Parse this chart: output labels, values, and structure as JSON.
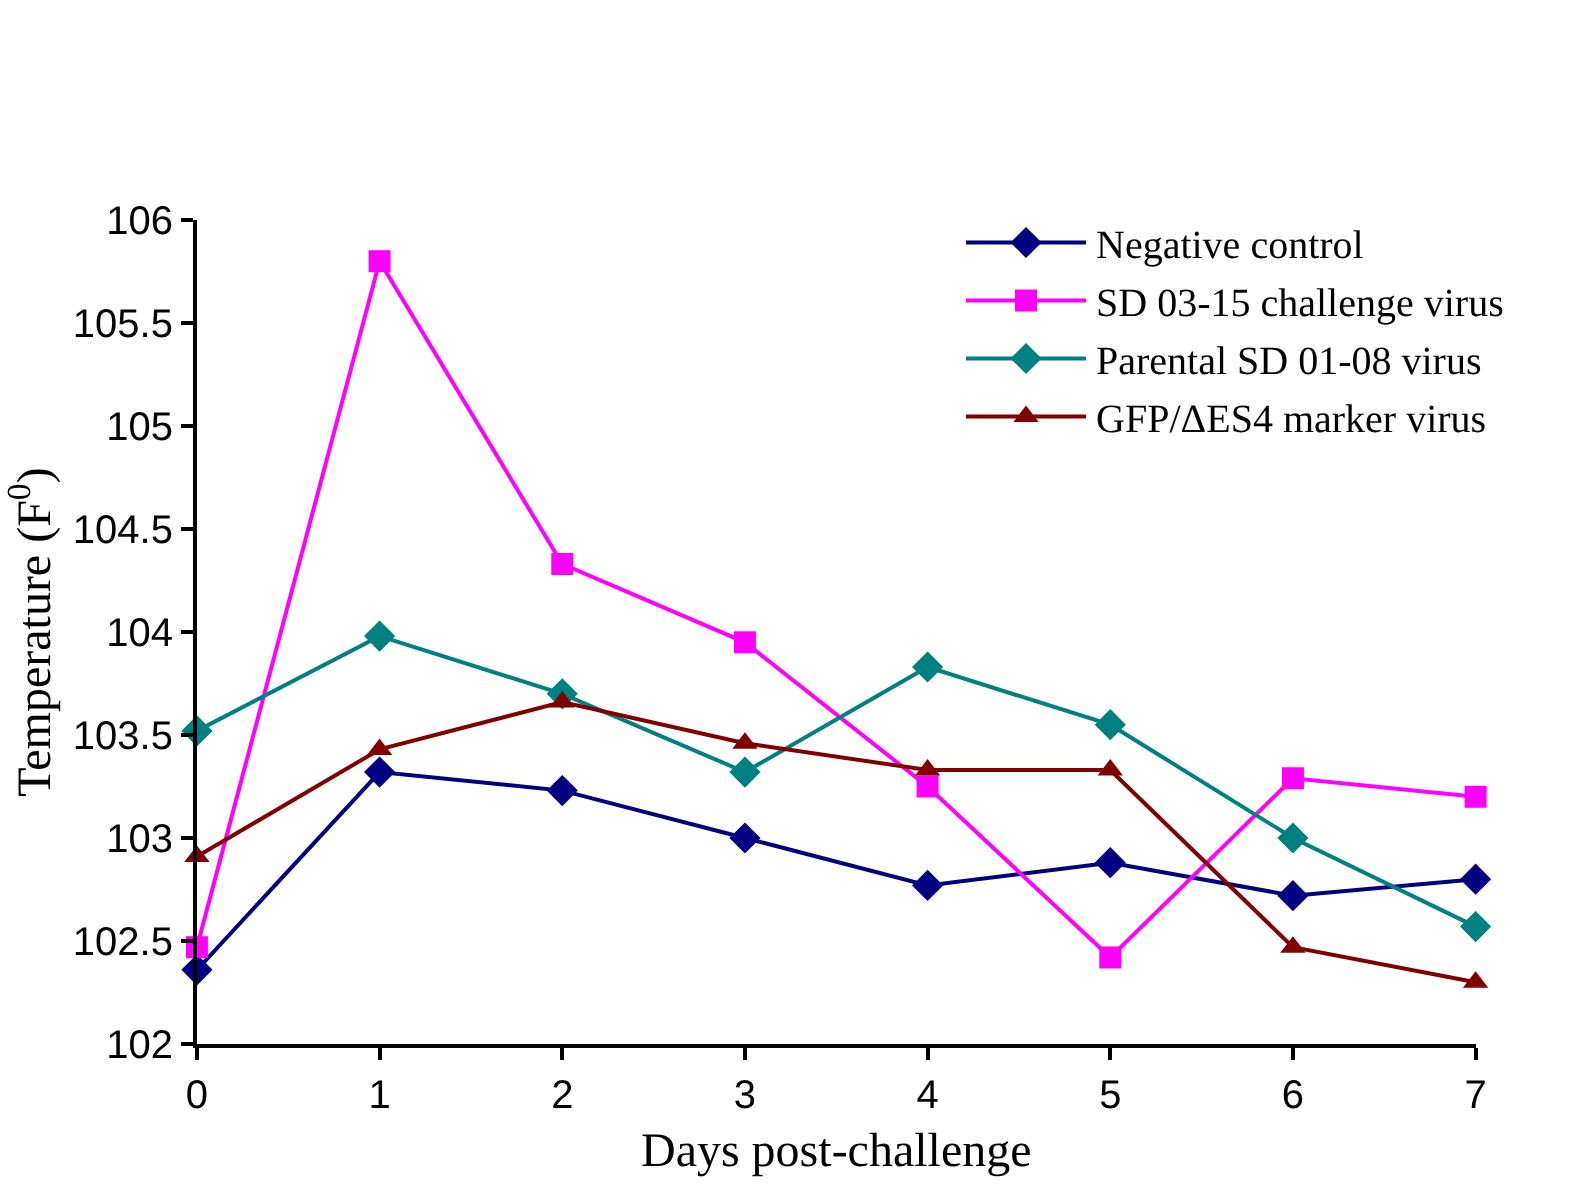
{
  "chart_data": {
    "type": "line",
    "xlabel": "Days post-challenge",
    "ylabel": "Temperature (F$^{0}$)",
    "x": [
      0,
      1,
      2,
      3,
      4,
      5,
      6,
      7
    ],
    "xlim": [
      0,
      7
    ],
    "xticks": [
      0,
      1,
      2,
      3,
      4,
      5,
      6,
      7
    ],
    "ylim": [
      102,
      106
    ],
    "yticks": [
      102,
      102.5,
      103,
      103.5,
      104,
      104.5,
      105,
      105.5,
      106
    ],
    "grid": false,
    "legend": "top right",
    "line_style": "solid",
    "series": [
      {
        "name": "Negative control",
        "color": "#000080",
        "marker": "diamond",
        "values": [
          102.36,
          103.32,
          103.23,
          103.0,
          102.77,
          102.88,
          102.72,
          102.8
        ]
      },
      {
        "name": "SD 03-15 challenge virus",
        "color": "#ff00ff",
        "marker": "square",
        "values": [
          102.47,
          105.8,
          104.33,
          103.95,
          103.25,
          102.42,
          103.29,
          103.2
        ]
      },
      {
        "name": "Parental SD 01-08 virus",
        "color": "#008080",
        "marker": "diamond",
        "values": [
          103.52,
          103.98,
          103.7,
          103.32,
          103.83,
          103.55,
          103.0,
          102.57
        ]
      },
      {
        "name": "GFP/ΔES4 marker virus",
        "color": "#800000",
        "marker": "triangle",
        "values": [
          102.91,
          103.43,
          103.66,
          103.46,
          103.33,
          103.33,
          102.47,
          102.3
        ]
      }
    ]
  }
}
